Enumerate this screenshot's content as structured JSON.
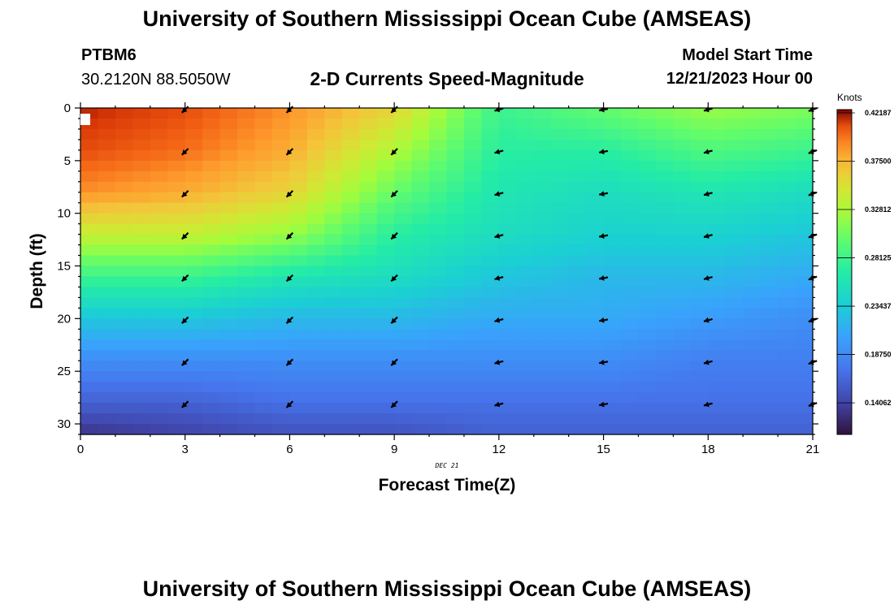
{
  "header": {
    "title": "University of Southern Mississippi Ocean Cube (AMSEAS)",
    "station": "PTBM6",
    "coords": "30.2120N  88.5050W",
    "plot_title": "2-D Currents Speed-Magnitude",
    "model_start_label": "Model Start Time",
    "model_start_value": "12/21/2023 Hour 00",
    "footer_title": "University of Southern Mississippi Ocean Cube (AMSEAS)"
  },
  "colorbar": {
    "unit": "Knots",
    "ticks": [
      "0.42187",
      "0.37500",
      "0.32812",
      "0.28125",
      "0.23437",
      "0.18750",
      "0.14062"
    ],
    "tick_values": [
      0.42187,
      0.375,
      0.32812,
      0.28125,
      0.23437,
      0.1875,
      0.14062
    ],
    "min": 0.11,
    "max": 0.425
  },
  "chart_data": {
    "type": "heatmap",
    "title": "2-D Currents Speed-Magnitude",
    "xlabel": "Forecast Time(Z)",
    "ylabel": "Depth (ft)",
    "x_date_label": "DEC 21",
    "xlim": [
      0,
      21
    ],
    "ylim": [
      31,
      0
    ],
    "xticks": [
      "0",
      "3",
      "6",
      "9",
      "12",
      "15",
      "18",
      "21"
    ],
    "yticks": [
      "0",
      "5",
      "10",
      "15",
      "20",
      "25",
      "30"
    ],
    "x_hours": [
      0,
      3,
      6,
      9,
      12,
      15,
      18,
      21
    ],
    "depths_ft": [
      0,
      4,
      8,
      12,
      16,
      20,
      24,
      28,
      31
    ],
    "speed_knots": [
      [
        0.42,
        0.41,
        0.39,
        0.36,
        0.28,
        0.3,
        0.32,
        0.31
      ],
      [
        0.41,
        0.4,
        0.38,
        0.33,
        0.27,
        0.27,
        0.29,
        0.28
      ],
      [
        0.39,
        0.38,
        0.36,
        0.3,
        0.26,
        0.25,
        0.26,
        0.25
      ],
      [
        0.34,
        0.34,
        0.32,
        0.27,
        0.25,
        0.24,
        0.24,
        0.23
      ],
      [
        0.28,
        0.28,
        0.26,
        0.25,
        0.23,
        0.22,
        0.22,
        0.21
      ],
      [
        0.23,
        0.23,
        0.22,
        0.22,
        0.21,
        0.21,
        0.2,
        0.19
      ],
      [
        0.19,
        0.19,
        0.19,
        0.19,
        0.19,
        0.19,
        0.18,
        0.18
      ],
      [
        0.16,
        0.16,
        0.17,
        0.17,
        0.17,
        0.17,
        0.17,
        0.17
      ],
      [
        0.13,
        0.14,
        0.15,
        0.15,
        0.16,
        0.16,
        0.16,
        0.16
      ]
    ],
    "vector_hours": [
      3,
      6,
      9,
      12,
      15,
      18,
      21
    ],
    "vector_depths_ft": [
      0,
      4,
      8,
      12,
      16,
      20,
      24,
      28
    ],
    "vector_direction_deg": [
      225,
      225,
      225,
      255,
      260,
      255,
      250
    ]
  }
}
